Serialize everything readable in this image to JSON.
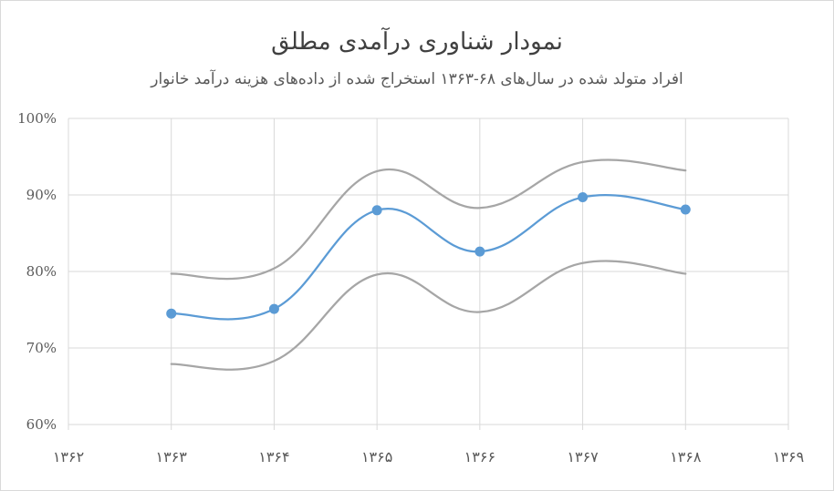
{
  "chart_data": {
    "type": "line",
    "title": "نمودار شناوری درآمدی مطلق",
    "subtitle": "افراد متولد شده در سال‌های ۶۸-۱۳۶۳  استخراج شده از داده‌های هزینه درآمد خانوار",
    "x_ticks": [
      "۱۳۶۲",
      "۱۳۶۳",
      "۱۳۶۴",
      "۱۳۶۵",
      "۱۳۶۶",
      "۱۳۶۷",
      "۱۳۶۸",
      "۱۳۶۹"
    ],
    "x_tick_values": [
      1362,
      1363,
      1364,
      1365,
      1366,
      1367,
      1368,
      1369
    ],
    "xlim": [
      1362,
      1369
    ],
    "y_ticks": [
      "60%",
      "70%",
      "80%",
      "90%",
      "100%"
    ],
    "y_tick_values": [
      60,
      70,
      80,
      90,
      100
    ],
    "ylim": [
      60,
      100
    ],
    "grid": true,
    "x": [
      1363,
      1364,
      1365,
      1366,
      1367,
      1368
    ],
    "series": [
      {
        "role": "main",
        "color": "#5b9bd5",
        "markers": true,
        "values": [
          74.5,
          75.1,
          88.0,
          82.6,
          89.7,
          88.1
        ]
      },
      {
        "role": "upper",
        "color": "#a6a6a6",
        "markers": false,
        "values": [
          79.7,
          80.4,
          93.1,
          88.3,
          94.3,
          93.2
        ]
      },
      {
        "role": "lower",
        "color": "#a6a6a6",
        "markers": false,
        "values": [
          67.9,
          68.3,
          79.6,
          74.7,
          81.1,
          79.7
        ]
      }
    ]
  }
}
